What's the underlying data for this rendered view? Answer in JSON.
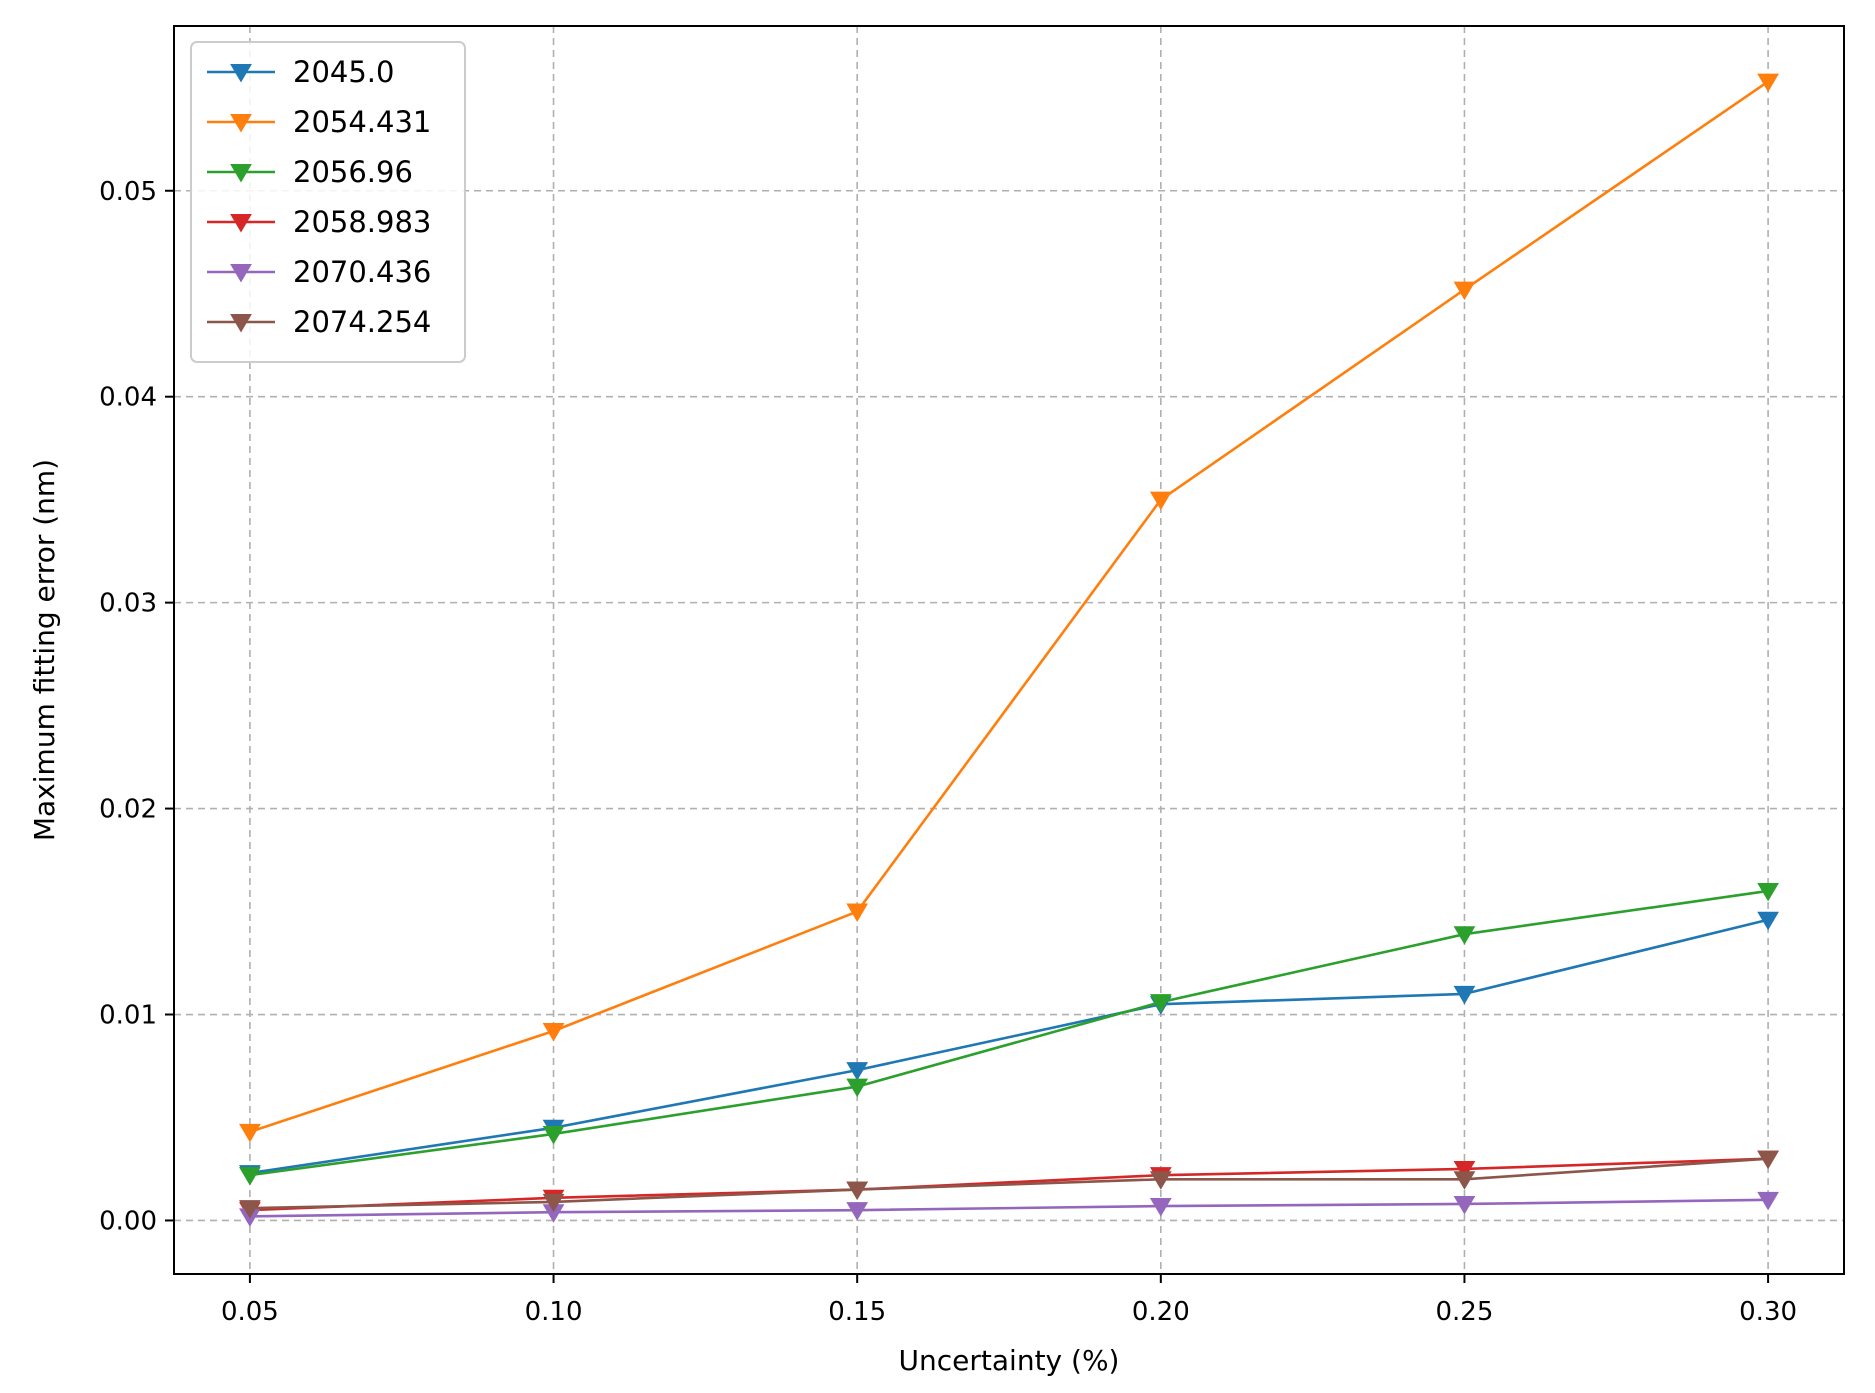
{
  "chart_data": {
    "type": "line",
    "title": "",
    "xlabel": "Uncertainty (%)",
    "ylabel": "Maximum fitting error (nm)",
    "x": [
      0.05,
      0.1,
      0.15,
      0.2,
      0.25,
      0.3
    ],
    "x_ticks": [
      "0.05",
      "0.10",
      "0.15",
      "0.20",
      "0.25",
      "0.30"
    ],
    "y_ticks": [
      "0.00",
      "0.01",
      "0.02",
      "0.03",
      "0.04",
      "0.05"
    ],
    "xlim": [
      0.0375,
      0.3125
    ],
    "ylim": [
      -0.0026,
      0.058
    ],
    "grid": true,
    "grid_style": "dashed",
    "marker": "triangle-down",
    "legend_position": "upper-left",
    "series": [
      {
        "name": "2045.0",
        "color": "#1f77b4",
        "values": [
          0.0023,
          0.0045,
          0.0073,
          0.0105,
          0.011,
          0.0146
        ]
      },
      {
        "name": "2054.431",
        "color": "#ff7f0e",
        "values": [
          0.0043,
          0.0092,
          0.015,
          0.035,
          0.0452,
          0.0553
        ]
      },
      {
        "name": "2056.96",
        "color": "#2ca02c",
        "values": [
          0.0022,
          0.0042,
          0.0065,
          0.0106,
          0.0139,
          0.016
        ]
      },
      {
        "name": "2058.983",
        "color": "#d62728",
        "values": [
          0.0005,
          0.0011,
          0.0015,
          0.0022,
          0.0025,
          0.003
        ]
      },
      {
        "name": "2070.436",
        "color": "#9467bd",
        "values": [
          0.0002,
          0.0004,
          0.0005,
          0.0007,
          0.0008,
          0.001
        ]
      },
      {
        "name": "2074.254",
        "color": "#8c564b",
        "values": [
          0.0006,
          0.0009,
          0.0015,
          0.002,
          0.002,
          0.003
        ]
      }
    ]
  }
}
